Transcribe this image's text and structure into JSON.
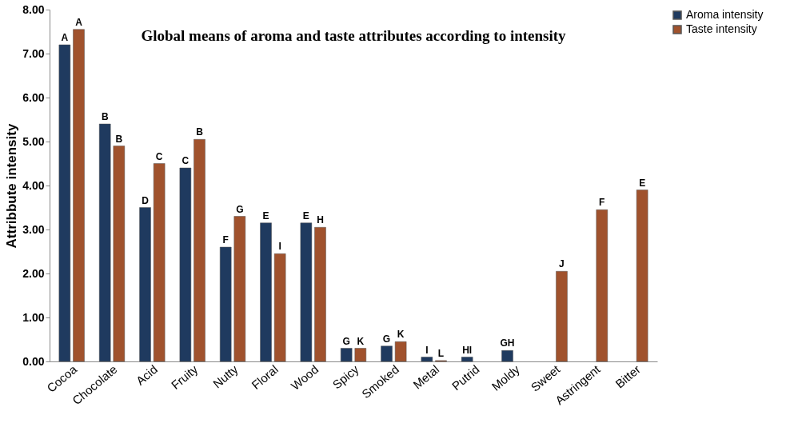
{
  "chart_data": {
    "type": "bar",
    "title": "Global means  of  aroma  and taste attributes according  to intensity",
    "ylabel": "Attribbute intensity",
    "categories": [
      "Cocoa",
      "Chocolate",
      "Acid",
      "Fruity",
      "Nutty",
      "Floral",
      "Wood",
      "Spicy",
      "Smoked",
      "Metal",
      "Putrid",
      "Moldy",
      "Sweet",
      "Astringent",
      "Bitter"
    ],
    "series": [
      {
        "name": "Aroma intensity",
        "color": "#1f3a5f",
        "values": [
          7.2,
          5.4,
          3.5,
          4.4,
          2.6,
          3.15,
          3.15,
          0.3,
          0.35,
          0.1,
          0.1,
          0.25,
          null,
          null,
          null
        ],
        "value_labels": [
          "A",
          "B",
          "D",
          "C",
          "F",
          "E",
          "E",
          "G",
          "G",
          "I",
          "HI",
          "GH",
          null,
          null,
          null
        ]
      },
      {
        "name": "Taste intensity",
        "color": "#a0522d",
        "values": [
          7.55,
          4.9,
          4.5,
          5.05,
          3.3,
          2.45,
          3.05,
          0.3,
          0.45,
          0.02,
          null,
          null,
          2.05,
          3.45,
          3.9
        ],
        "value_labels": [
          "A",
          "B",
          "C",
          "B",
          "G",
          "I",
          "H",
          "K",
          "K",
          "L",
          null,
          null,
          "J",
          "F",
          "E"
        ]
      }
    ],
    "ylim": [
      0,
      8
    ],
    "yticks": [
      {
        "value": 0,
        "label": "0.00"
      },
      {
        "value": 1,
        "label": "1.00"
      },
      {
        "value": 2,
        "label": "2.00"
      },
      {
        "value": 3,
        "label": "3.00"
      },
      {
        "value": 4,
        "label": "4.00"
      },
      {
        "value": 5,
        "label": "5.00"
      },
      {
        "value": 6,
        "label": "6.00"
      },
      {
        "value": 7,
        "label": "7.00"
      },
      {
        "value": 8,
        "label": "8.00"
      }
    ],
    "grid": false,
    "legend": "right"
  }
}
